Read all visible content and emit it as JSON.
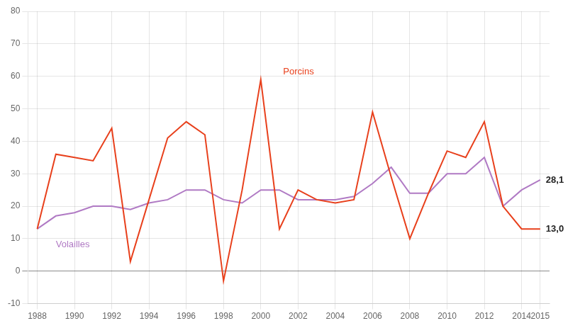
{
  "chart_data": {
    "type": "line",
    "x": [
      1988,
      1989,
      1990,
      1991,
      1992,
      1993,
      1994,
      1995,
      1996,
      1997,
      1998,
      1999,
      2000,
      2001,
      2002,
      2003,
      2004,
      2005,
      2006,
      2007,
      2008,
      2009,
      2010,
      2011,
      2012,
      2013,
      2014,
      2015
    ],
    "series": [
      {
        "name": "Porcins",
        "color": "#e8401c",
        "values": [
          13,
          36,
          35,
          34,
          44,
          3,
          22,
          41,
          46,
          42,
          -3,
          25,
          59,
          13,
          25,
          22,
          21,
          22,
          49,
          29,
          10,
          24,
          37,
          35,
          46,
          20,
          13,
          13.0
        ]
      },
      {
        "name": "Volailles",
        "color": "#b07ac4",
        "values": [
          13,
          17,
          18,
          20,
          20,
          19,
          21,
          22,
          25,
          25,
          22,
          21,
          25,
          25,
          22,
          22,
          22,
          23,
          27,
          32,
          24,
          24,
          30,
          30,
          35,
          20,
          25,
          28.1
        ]
      }
    ],
    "annotations": [
      {
        "text": "Porcins",
        "x": 2001.2,
        "y": 60
      },
      {
        "text": "Volailles",
        "x": 1989.0,
        "y": 9.5
      },
      {
        "text": "28,1",
        "x": 2015,
        "y": 28.1
      },
      {
        "text": "13,0",
        "x": 2015,
        "y": 13.0
      }
    ],
    "xlim": [
      1987.5,
      2015.5
    ],
    "xticks": [
      1988,
      1990,
      1992,
      1994,
      1996,
      1998,
      2000,
      2002,
      2004,
      2006,
      2008,
      2010,
      2012,
      2014,
      2015
    ],
    "ylim": [
      -10,
      80
    ],
    "yticks": [
      -10,
      0,
      10,
      20,
      30,
      40,
      50,
      60,
      70,
      80
    ],
    "grid": true,
    "legend": "none"
  }
}
